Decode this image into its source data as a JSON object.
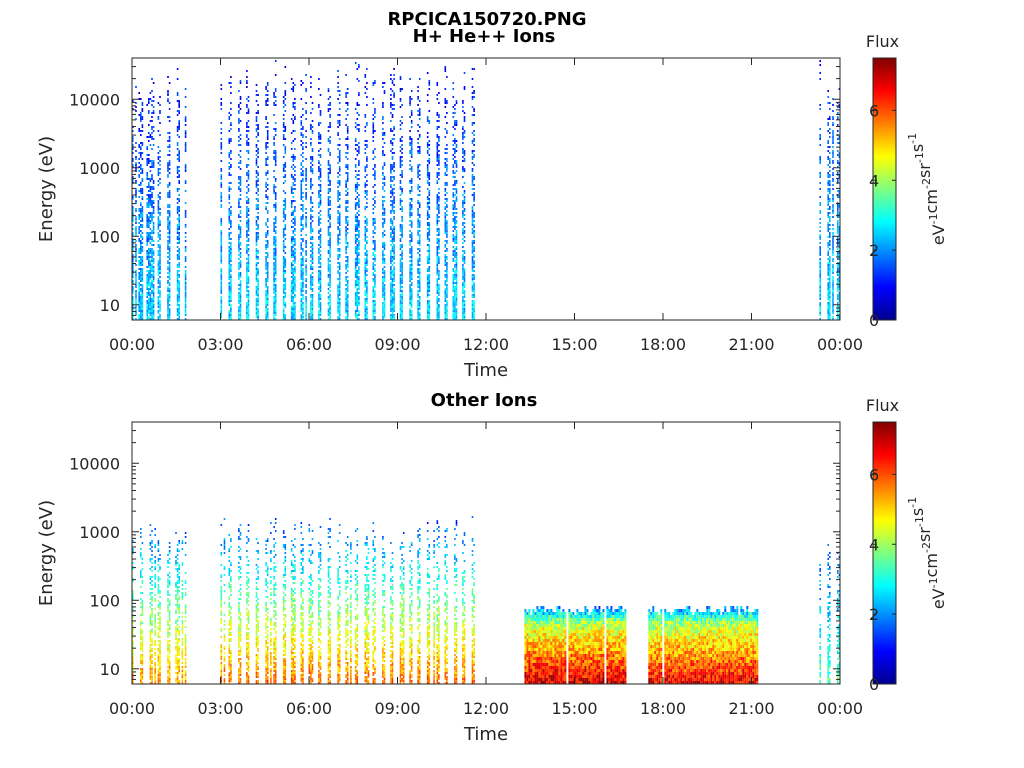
{
  "figure_title": "RPCICA150720.PNG",
  "colors": {
    "colormap": "jet",
    "axis": "#262626",
    "background": "#ffffff"
  },
  "chart_data": [
    {
      "type": "heatmap",
      "title": "H+ He++ Ions",
      "xlabel": "Time",
      "ylabel": "Energy (eV)",
      "xtick_labels": [
        "00:00",
        "03:00",
        "06:00",
        "09:00",
        "12:00",
        "15:00",
        "18:00",
        "21:00",
        "00:00"
      ],
      "xlim_hours": [
        0,
        24
      ],
      "yscale": "log",
      "ylim": [
        6,
        40000
      ],
      "ytick_values": [
        10,
        100,
        1000,
        10000
      ],
      "ytick_labels": [
        "10",
        "100",
        "1000",
        "10000"
      ],
      "colorbar": {
        "title": "Flux",
        "label": "eV-1cm-2sr-1s-1",
        "label_parts": [
          [
            "eV",
            "-1"
          ],
          [
            "cm",
            "-2"
          ],
          [
            "sr",
            "-1"
          ],
          [
            "s",
            "-1"
          ]
        ],
        "clim": [
          0,
          7.5
        ],
        "tick_values": [
          0,
          2,
          4,
          6
        ],
        "tick_labels": [
          "0",
          "2",
          "4",
          "6"
        ]
      },
      "data_segments": [
        {
          "start_h": 0.0,
          "end_h": 1.8,
          "energy_top_eV": 25000,
          "flux_low_energy": 2.5,
          "flux_high_energy": 1.0,
          "pattern": "sparse-stripes"
        },
        {
          "start_h": 3.0,
          "end_h": 11.7,
          "energy_top_eV": 30000,
          "flux_low_energy": 2.6,
          "flux_high_energy": 1.0,
          "pattern": "sparse-stripes"
        },
        {
          "start_h": 23.3,
          "end_h": 24.0,
          "energy_top_eV": 30000,
          "flux_low_energy": 2.6,
          "flux_high_energy": 1.2,
          "pattern": "sparse-stripes"
        }
      ]
    },
    {
      "type": "heatmap",
      "title": "Other Ions",
      "xlabel": "Time",
      "ylabel": "Energy (eV)",
      "xtick_labels": [
        "00:00",
        "03:00",
        "06:00",
        "09:00",
        "12:00",
        "15:00",
        "18:00",
        "21:00",
        "00:00"
      ],
      "xlim_hours": [
        0,
        24
      ],
      "yscale": "log",
      "ylim": [
        6,
        40000
      ],
      "ytick_values": [
        10,
        100,
        1000,
        10000
      ],
      "ytick_labels": [
        "10",
        "100",
        "1000",
        "10000"
      ],
      "colorbar": {
        "title": "Flux",
        "label": "eV-1cm-2sr-1s-1",
        "label_parts": [
          [
            "eV",
            "-1"
          ],
          [
            "cm",
            "-2"
          ],
          [
            "sr",
            "-1"
          ],
          [
            "s",
            "-1"
          ]
        ],
        "clim": [
          0,
          7.5
        ],
        "tick_values": [
          0,
          2,
          4,
          6
        ],
        "tick_labels": [
          "0",
          "2",
          "4",
          "6"
        ]
      },
      "data_segments": [
        {
          "start_h": 0.0,
          "end_h": 1.8,
          "energy_top_eV": 1500,
          "flux_low_energy": 5.5,
          "flux_high_energy": 1.5,
          "pattern": "sparse-stripes"
        },
        {
          "start_h": 3.0,
          "end_h": 11.7,
          "energy_top_eV": 1500,
          "flux_low_energy": 5.8,
          "flux_high_energy": 1.5,
          "pattern": "sparse-stripes"
        },
        {
          "start_h": 13.3,
          "end_h": 16.7,
          "energy_top_eV": 80,
          "flux_low_energy": 7.0,
          "flux_high_energy": 3.5,
          "pattern": "dense"
        },
        {
          "start_h": 17.5,
          "end_h": 21.2,
          "energy_top_eV": 80,
          "flux_low_energy": 6.8,
          "flux_high_energy": 3.5,
          "pattern": "dense"
        },
        {
          "start_h": 23.3,
          "end_h": 24.0,
          "energy_top_eV": 800,
          "flux_low_energy": 3.5,
          "flux_high_energy": 1.5,
          "pattern": "sparse-stripes"
        }
      ]
    }
  ]
}
